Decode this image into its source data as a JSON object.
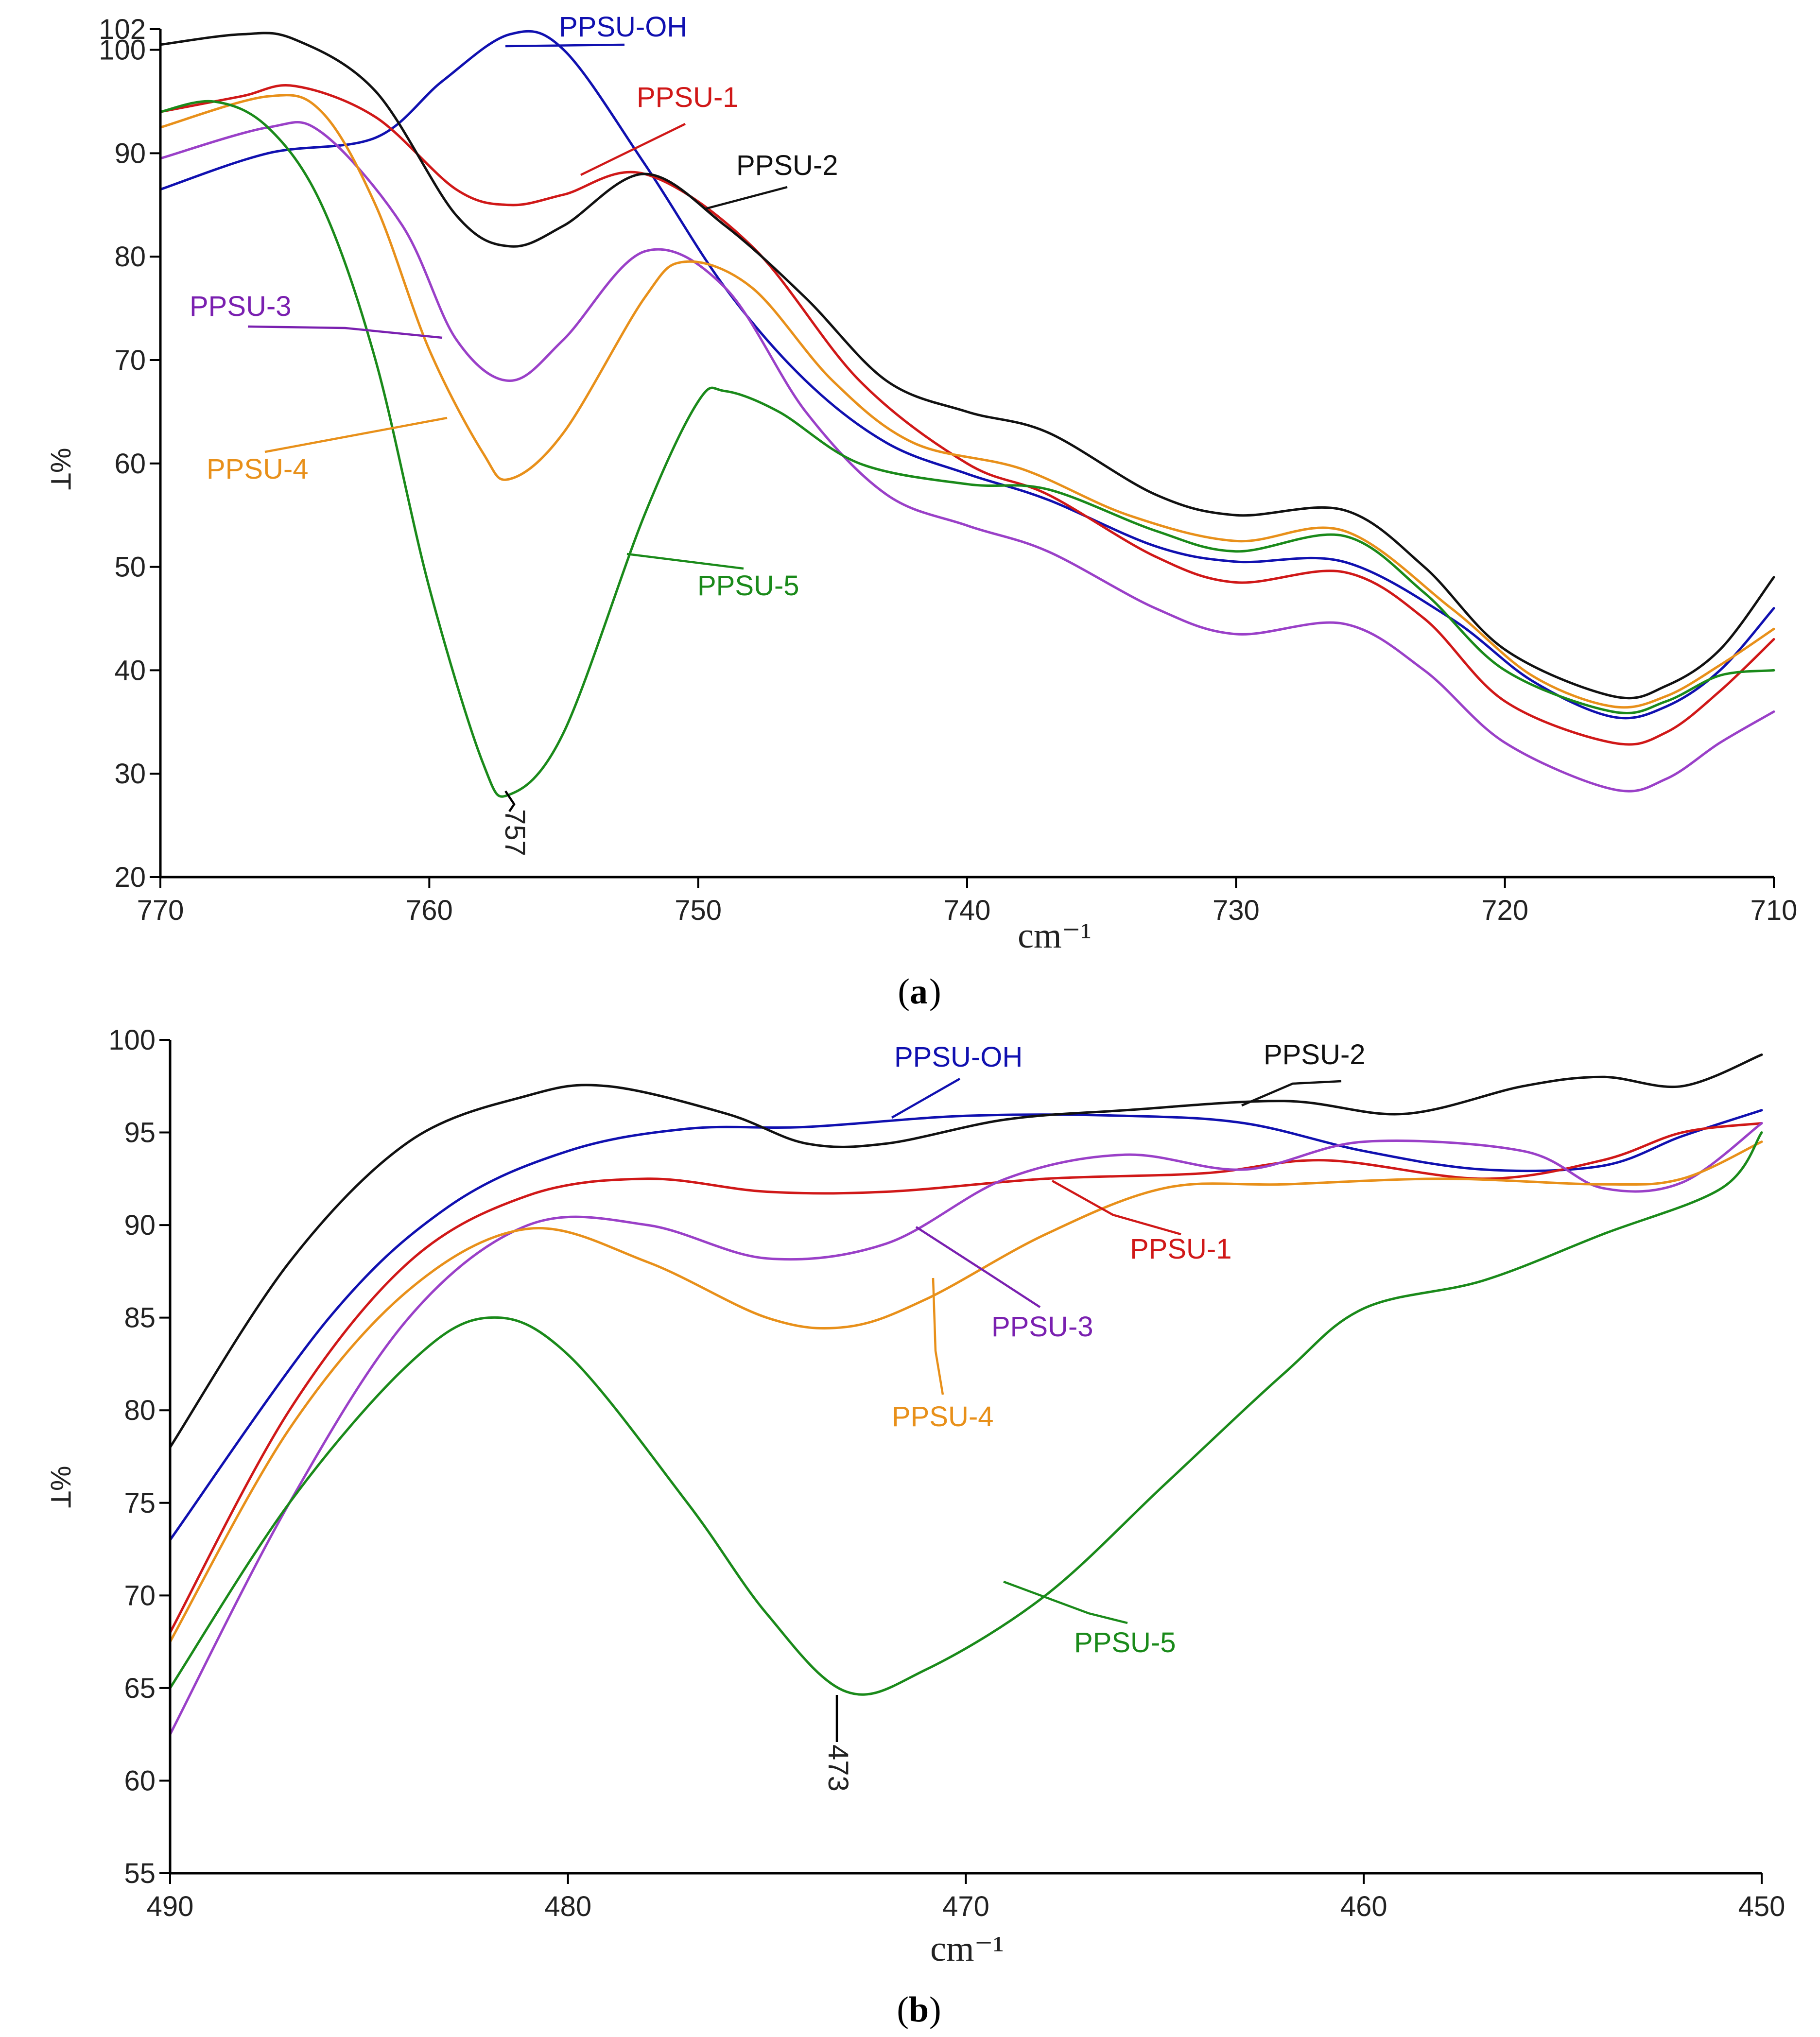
{
  "figure": {
    "panels": [
      {
        "panel_label": "a",
        "xlabel": "cm⁻¹",
        "ylabel": "%T",
        "x_ticks": [
          770,
          760,
          750,
          740,
          730,
          720,
          710
        ],
        "y_ticks": [
          20,
          30,
          40,
          50,
          60,
          70,
          80,
          90,
          100,
          102
        ],
        "peak_annotation": "757"
      },
      {
        "panel_label": "b",
        "xlabel": "cm⁻¹",
        "ylabel": "%T",
        "x_ticks": [
          490,
          480,
          470,
          460,
          450
        ],
        "y_ticks": [
          55,
          60,
          65,
          70,
          75,
          80,
          85,
          90,
          95,
          100
        ],
        "peak_annotation": "473"
      }
    ]
  },
  "colors": {
    "PPSU-OH": "#1010b0",
    "PPSU-1": "#d01818",
    "PPSU-2": "#111111",
    "PPSU-3": "#9a40c8",
    "PPSU-4": "#e8901a",
    "PPSU-5": "#1a8a1a"
  },
  "chart_data": [
    {
      "type": "line",
      "xlabel": "cm⁻¹",
      "ylabel": "%T",
      "xlim": [
        770,
        710
      ],
      "ylim": [
        20,
        102
      ],
      "x_reversed": true,
      "grid": false,
      "series": [
        {
          "name": "PPSU-OH",
          "points": [
            [
              770,
              86.5
            ],
            [
              766,
              90
            ],
            [
              762,
              91.5
            ],
            [
              759.5,
              97
            ],
            [
              757,
              101.5
            ],
            [
              755,
              100
            ],
            [
              752,
              89
            ],
            [
              749,
              77
            ],
            [
              746,
              68
            ],
            [
              743,
              62
            ],
            [
              740,
              59
            ],
            [
              737,
              56.5
            ],
            [
              733,
              52
            ],
            [
              730,
              50.5
            ],
            [
              726,
              50.5
            ],
            [
              722,
              45
            ],
            [
              719,
              39
            ],
            [
              716,
              35.5
            ],
            [
              714,
              36.5
            ],
            [
              712,
              40
            ],
            [
              710,
              46
            ]
          ]
        },
        {
          "name": "PPSU-1",
          "points": [
            [
              770,
              94
            ],
            [
              767,
              95.5
            ],
            [
              765,
              96.5
            ],
            [
              762,
              93.5
            ],
            [
              759,
              86.5
            ],
            [
              757,
              85
            ],
            [
              755,
              86
            ],
            [
              752,
              88
            ],
            [
              748,
              81
            ],
            [
              744,
              68
            ],
            [
              740,
              60
            ],
            [
              737,
              57
            ],
            [
              733,
              51
            ],
            [
              730,
              48.5
            ],
            [
              726,
              49.5
            ],
            [
              723,
              45
            ],
            [
              720,
              37
            ],
            [
              716,
              33
            ],
            [
              714,
              34
            ],
            [
              712,
              38
            ],
            [
              710,
              43
            ]
          ]
        },
        {
          "name": "PPSU-2",
          "points": [
            [
              770,
              100.5
            ],
            [
              767,
              101.5
            ],
            [
              765,
              101
            ],
            [
              762,
              96
            ],
            [
              759,
              84
            ],
            [
              757,
              81
            ],
            [
              755,
              83
            ],
            [
              752,
              88
            ],
            [
              749,
              83
            ],
            [
              746,
              76
            ],
            [
              743,
              68
            ],
            [
              740,
              65
            ],
            [
              737,
              63
            ],
            [
              733,
              57
            ],
            [
              730,
              55
            ],
            [
              726,
              55.5
            ],
            [
              723,
              50
            ],
            [
              720,
              42
            ],
            [
              716,
              37.5
            ],
            [
              714,
              38.5
            ],
            [
              712,
              42
            ],
            [
              710,
              49
            ]
          ]
        },
        {
          "name": "PPSU-3",
          "points": [
            [
              770,
              89.5
            ],
            [
              766,
              92.5
            ],
            [
              764,
              92
            ],
            [
              761,
              83
            ],
            [
              759,
              72
            ],
            [
              757,
              68
            ],
            [
              755,
              72
            ],
            [
              752,
              80.5
            ],
            [
              749,
              77
            ],
            [
              746,
              65
            ],
            [
              743,
              57
            ],
            [
              740,
              54
            ],
            [
              737,
              51.5
            ],
            [
              733,
              46
            ],
            [
              730,
              43.5
            ],
            [
              726,
              44.5
            ],
            [
              723,
              40
            ],
            [
              720,
              33
            ],
            [
              716,
              28.5
            ],
            [
              714,
              29.5
            ],
            [
              712,
              33
            ],
            [
              710,
              36
            ]
          ]
        },
        {
          "name": "PPSU-4",
          "points": [
            [
              770,
              92.5
            ],
            [
              766,
              95.5
            ],
            [
              764,
              94
            ],
            [
              762,
              85
            ],
            [
              760,
              71
            ],
            [
              758,
              61
            ],
            [
              757,
              58.5
            ],
            [
              755,
              63
            ],
            [
              752,
              76
            ],
            [
              750.5,
              79.5
            ],
            [
              748,
              77
            ],
            [
              745,
              68
            ],
            [
              742,
              62
            ],
            [
              738,
              59.5
            ],
            [
              734,
              55
            ],
            [
              730,
              52.5
            ],
            [
              726,
              53.5
            ],
            [
              722,
              46
            ],
            [
              719,
              39.5
            ],
            [
              716,
              36.5
            ],
            [
              714,
              37.5
            ],
            [
              712,
              40.5
            ],
            [
              710,
              44
            ]
          ]
        },
        {
          "name": "PPSU-5",
          "points": [
            [
              770,
              94
            ],
            [
              768,
              95
            ],
            [
              766,
              92.5
            ],
            [
              764,
              85
            ],
            [
              762,
              70
            ],
            [
              760,
              48
            ],
            [
              758,
              31
            ],
            [
              757,
              28
            ],
            [
              755,
              34
            ],
            [
              752,
              55
            ],
            [
              750,
              66
            ],
            [
              749,
              67
            ],
            [
              747,
              65
            ],
            [
              744,
              60
            ],
            [
              740,
              58
            ],
            [
              737,
              57.5
            ],
            [
              733,
              53.5
            ],
            [
              730,
              51.5
            ],
            [
              726,
              53
            ],
            [
              723,
              47.5
            ],
            [
              720,
              40
            ],
            [
              716,
              36
            ],
            [
              714,
              37
            ],
            [
              712,
              39.5
            ],
            [
              710,
              40
            ]
          ]
        }
      ],
      "annotations": [
        {
          "text": "757",
          "x": 757,
          "y": 28
        }
      ]
    },
    {
      "type": "line",
      "xlabel": "cm⁻¹",
      "ylabel": "%T",
      "xlim": [
        490,
        450
      ],
      "ylim": [
        55,
        100
      ],
      "x_reversed": true,
      "grid": false,
      "series": [
        {
          "name": "PPSU-OH",
          "points": [
            [
              490,
              73
            ],
            [
              486,
              85
            ],
            [
              483,
              91
            ],
            [
              480,
              94
            ],
            [
              477,
              95.2
            ],
            [
              474,
              95.3
            ],
            [
              470,
              95.9
            ],
            [
              466,
              95.9
            ],
            [
              463,
              95.5
            ],
            [
              460,
              94
            ],
            [
              457,
              93
            ],
            [
              454,
              93.2
            ],
            [
              452,
              94.8
            ],
            [
              450,
              96.2
            ]
          ]
        },
        {
          "name": "PPSU-1",
          "points": [
            [
              490,
              68
            ],
            [
              487,
              80
            ],
            [
              484,
              88
            ],
            [
              481,
              91.6
            ],
            [
              478,
              92.5
            ],
            [
              475,
              91.8
            ],
            [
              472,
              91.8
            ],
            [
              468,
              92.5
            ],
            [
              464,
              92.8
            ],
            [
              461,
              93.5
            ],
            [
              457,
              92.5
            ],
            [
              454,
              93.5
            ],
            [
              452,
              95
            ],
            [
              450,
              95.5
            ]
          ]
        },
        {
          "name": "PPSU-2",
          "points": [
            [
              490,
              78
            ],
            [
              487,
              88
            ],
            [
              484,
              94.5
            ],
            [
              481,
              97
            ],
            [
              479,
              97.5
            ],
            [
              476,
              96
            ],
            [
              474,
              94.4
            ],
            [
              472,
              94.4
            ],
            [
              469,
              95.7
            ],
            [
              466,
              96.2
            ],
            [
              462,
              96.7
            ],
            [
              459,
              96
            ],
            [
              456,
              97.5
            ],
            [
              454,
              98
            ],
            [
              452,
              97.5
            ],
            [
              450,
              99.2
            ]
          ]
        },
        {
          "name": "PPSU-3",
          "points": [
            [
              490,
              62.5
            ],
            [
              487,
              75
            ],
            [
              484,
              85
            ],
            [
              481,
              90
            ],
            [
              478,
              90
            ],
            [
              475,
              88.2
            ],
            [
              472,
              89
            ],
            [
              469,
              92.5
            ],
            [
              466,
              93.8
            ],
            [
              463,
              93
            ],
            [
              460,
              94.5
            ],
            [
              456,
              94
            ],
            [
              454,
              92
            ],
            [
              452,
              92.3
            ],
            [
              450,
              95.5
            ]
          ]
        },
        {
          "name": "PPSU-4",
          "points": [
            [
              490,
              67.5
            ],
            [
              487,
              79
            ],
            [
              484,
              86.5
            ],
            [
              481,
              89.8
            ],
            [
              478,
              88
            ],
            [
              475,
              85
            ],
            [
              473,
              84.5
            ],
            [
              471,
              86
            ],
            [
              468,
              89.5
            ],
            [
              465,
              92
            ],
            [
              462,
              92.2
            ],
            [
              458,
              92.5
            ],
            [
              454,
              92.2
            ],
            [
              452,
              92.5
            ],
            [
              450,
              94.5
            ]
          ]
        },
        {
          "name": "PPSU-5",
          "points": [
            [
              490,
              65
            ],
            [
              487,
              75
            ],
            [
              484,
              82.5
            ],
            [
              482,
              85
            ],
            [
              480,
              83
            ],
            [
              477,
              75
            ],
            [
              475,
              69
            ],
            [
              473,
              64.8
            ],
            [
              471,
              66
            ],
            [
              468,
              70
            ],
            [
              465,
              76
            ],
            [
              462,
              82
            ],
            [
              460,
              85.5
            ],
            [
              457,
              87
            ],
            [
              454,
              89.5
            ],
            [
              451,
              92
            ],
            [
              450,
              95
            ]
          ]
        }
      ],
      "annotations": [
        {
          "text": "473",
          "x": 473,
          "y": 64.8
        }
      ]
    }
  ]
}
